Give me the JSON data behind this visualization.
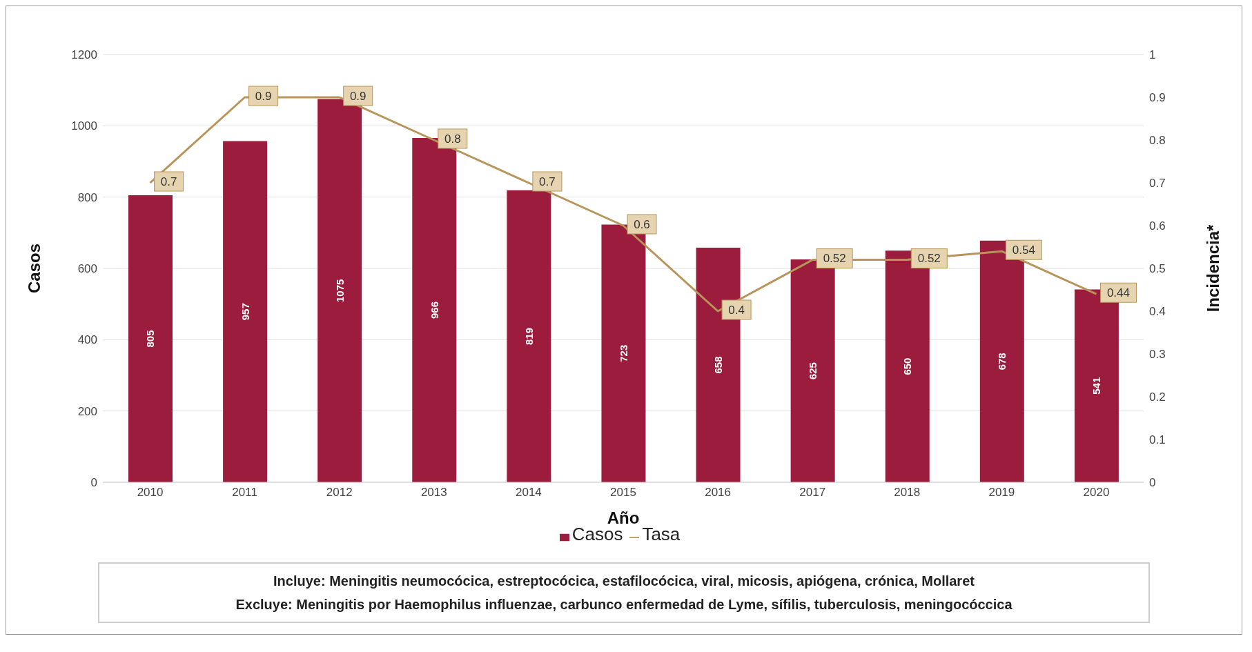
{
  "chart_data": {
    "type": "bar",
    "categories": [
      "2010",
      "2011",
      "2012",
      "2013",
      "2014",
      "2015",
      "2016",
      "2017",
      "2018",
      "2019",
      "2020"
    ],
    "series": [
      {
        "name": "Casos",
        "color": "#9b1c3c",
        "values": [
          805,
          957,
          1075,
          966,
          819,
          723,
          658,
          625,
          650,
          678,
          541
        ]
      },
      {
        "name": "Tasa",
        "type": "line",
        "axis": "y2",
        "color": "#b8945a",
        "values": [
          0.7,
          0.9,
          0.9,
          0.8,
          0.7,
          0.6,
          0.4,
          0.52,
          0.52,
          0.54,
          0.44
        ]
      }
    ],
    "xlabel": "Año",
    "ylabel": "Casos",
    "y2label": "Incidencia*",
    "ylim": [
      0,
      1200
    ],
    "yticks": [
      0,
      200,
      400,
      600,
      800,
      1000,
      1200
    ],
    "y2lim": [
      0,
      1
    ],
    "y2ticks": [
      0,
      0.1,
      0.2,
      0.3,
      0.4,
      0.5,
      0.6,
      0.7,
      0.8,
      0.9,
      1
    ],
    "grid": "y",
    "legend": "bottom",
    "data_labels": true,
    "marker": "none",
    "line_style": "solid",
    "annotations": [
      "Incluye: Meningitis neumocócica, estreptocócica, estafilocócica, viral, micosis, apiógena, crónica, Mollaret",
      "Excluye:  Meningitis por Haemophilus influenzae, carbunco enfermedad de Lyme, sífilis, tuberculosis, meningocóccica"
    ]
  }
}
